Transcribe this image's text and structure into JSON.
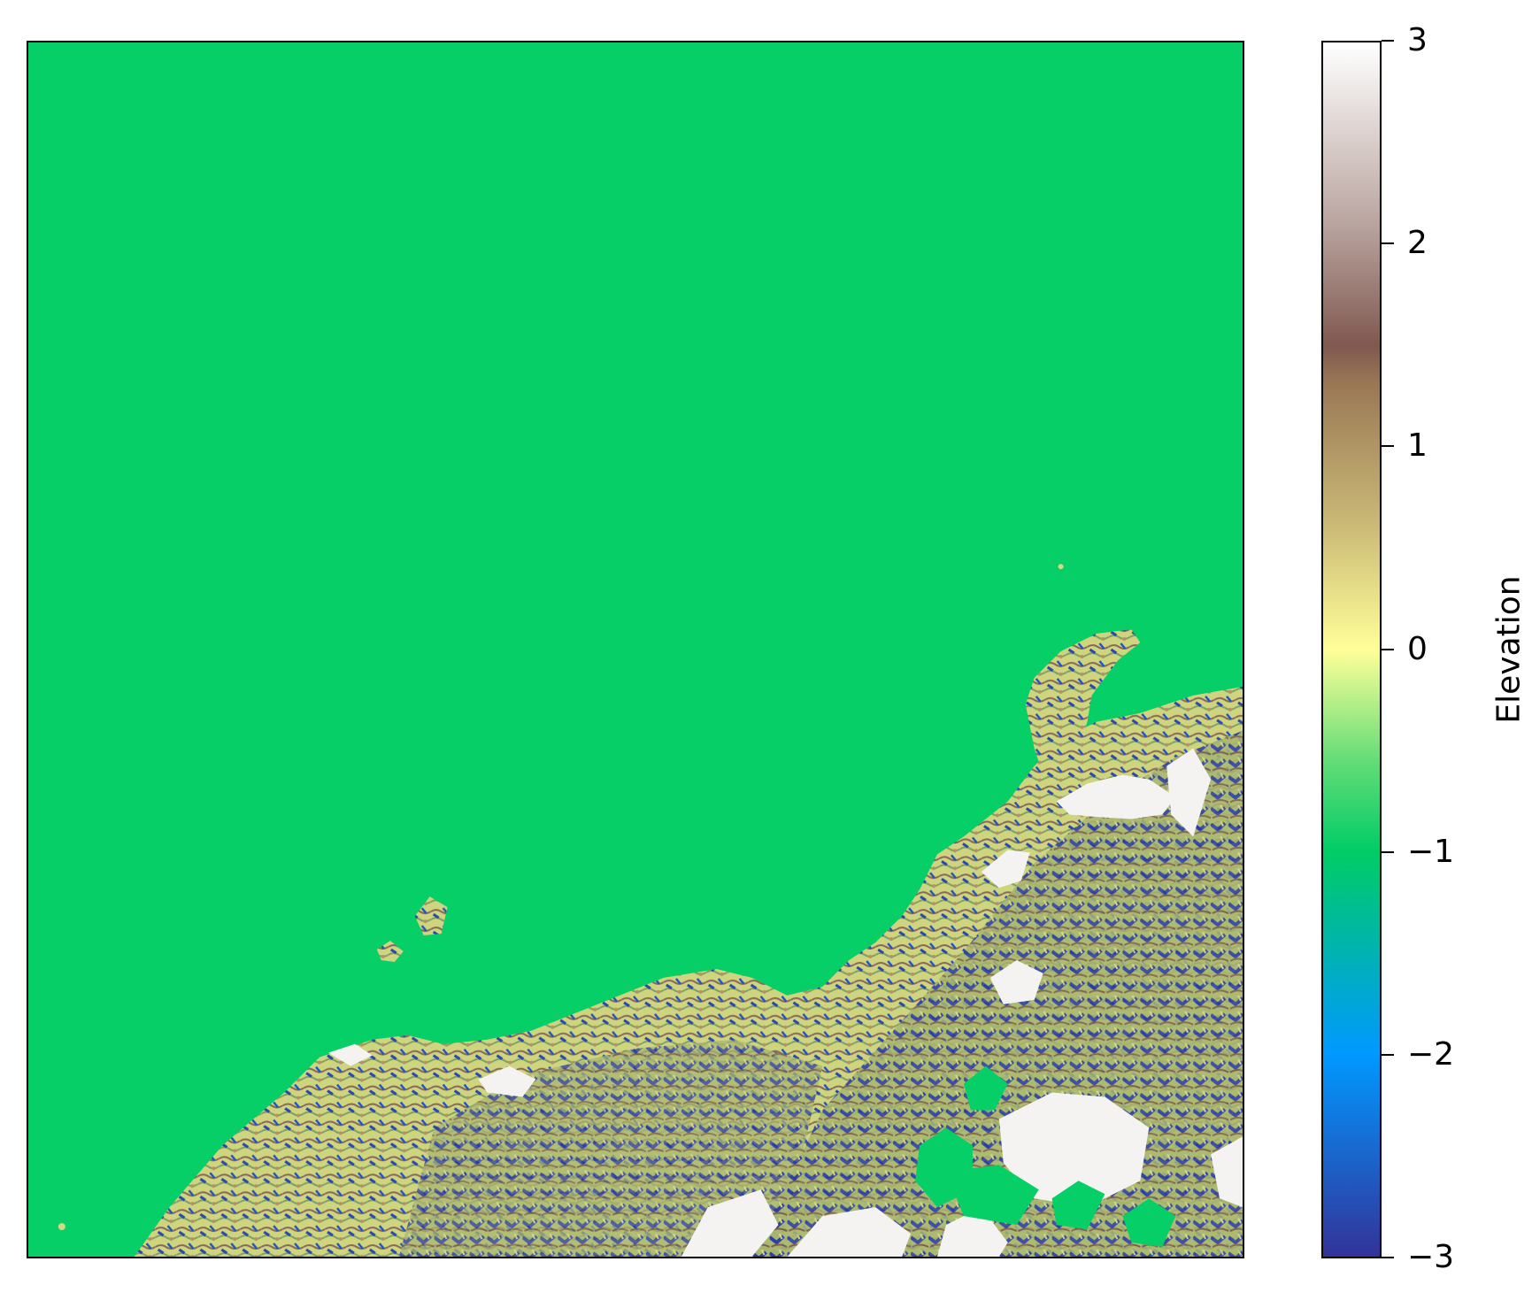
{
  "colorbar": {
    "label": "Elevation",
    "min": -3,
    "max": 3,
    "ticks": [
      {
        "value": 3,
        "label": "3"
      },
      {
        "value": 2,
        "label": "2"
      },
      {
        "value": 1,
        "label": "1"
      },
      {
        "value": 0,
        "label": "0"
      },
      {
        "value": -1,
        "label": "−1"
      },
      {
        "value": -2,
        "label": "−2"
      },
      {
        "value": -3,
        "label": "−3"
      }
    ],
    "colormap": [
      "#333399",
      "#0099ff",
      "#00cc66",
      "#ffff99",
      "#997755",
      "#805850",
      "#ffffff"
    ]
  },
  "map": {
    "sea_color": "#05cf66",
    "land_colors": {
      "lowland": "#d8d883",
      "ridge": "#8a6a57",
      "valley": "#2a47b0",
      "snow": "#f5f3f2"
    }
  }
}
